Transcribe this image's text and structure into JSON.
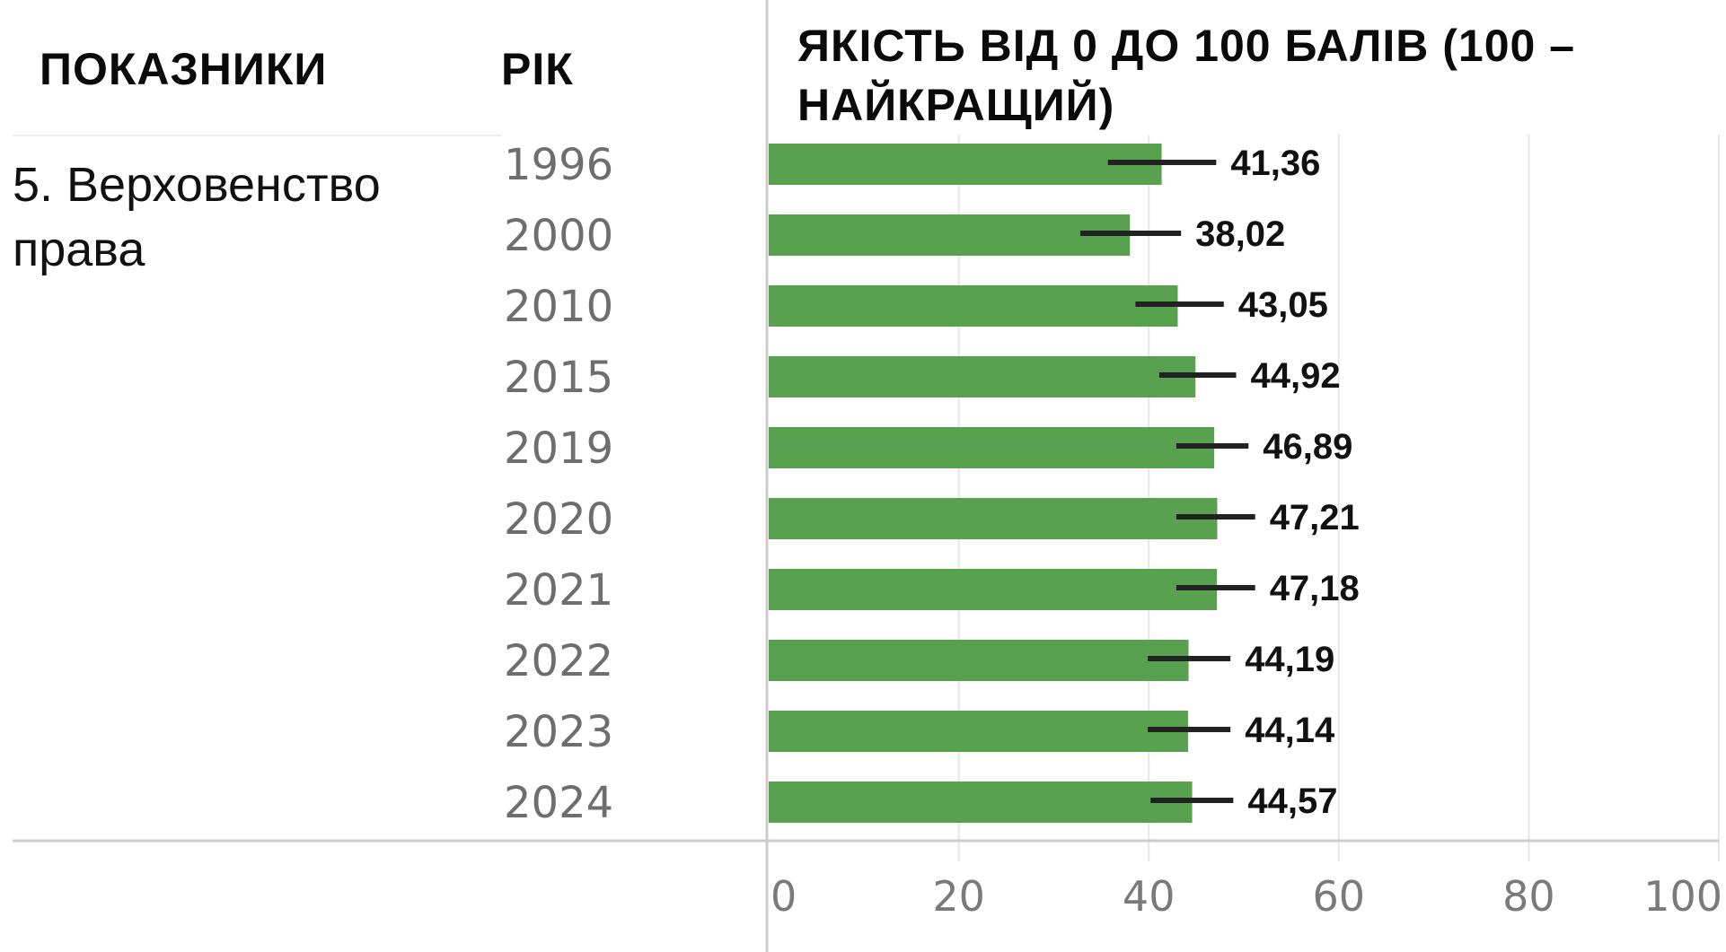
{
  "header": {
    "indicators": "ПОКАЗНИКИ",
    "year": "РІК",
    "quality_line1": "ЯКІСТЬ ВІД 0 ДО 100 БАЛІВ (100 –",
    "quality_line2": "НАЙКРАЩИЙ)"
  },
  "indicator": {
    "line1": "5. Верховенство",
    "line2": "права"
  },
  "colors": {
    "bar": "#57a14f",
    "error_bar": "#222222",
    "grid": "#e6e6e6",
    "divider": "#cccccc"
  },
  "chart_data": {
    "type": "bar",
    "orientation": "horizontal",
    "categories": [
      "1996",
      "2000",
      "2010",
      "2015",
      "2019",
      "2020",
      "2021",
      "2022",
      "2023",
      "2024"
    ],
    "values": [
      41.36,
      38.02,
      43.05,
      44.92,
      46.89,
      47.21,
      47.18,
      44.19,
      44.14,
      44.57
    ],
    "value_labels": [
      "41,36",
      "38,02",
      "43,05",
      "44,92",
      "46,89",
      "47,21",
      "47,18",
      "44,19",
      "44,14",
      "44,57"
    ],
    "error_low": [
      35.7,
      32.8,
      38.6,
      41.1,
      42.9,
      42.9,
      42.9,
      39.9,
      39.9,
      40.2
    ],
    "error_high": [
      47.1,
      43.4,
      47.9,
      49.2,
      50.5,
      51.2,
      51.2,
      48.6,
      48.6,
      48.9
    ],
    "xlim": [
      0,
      100
    ],
    "xticks": [
      "0",
      "20",
      "40",
      "60",
      "80",
      "100"
    ],
    "grid": true
  }
}
